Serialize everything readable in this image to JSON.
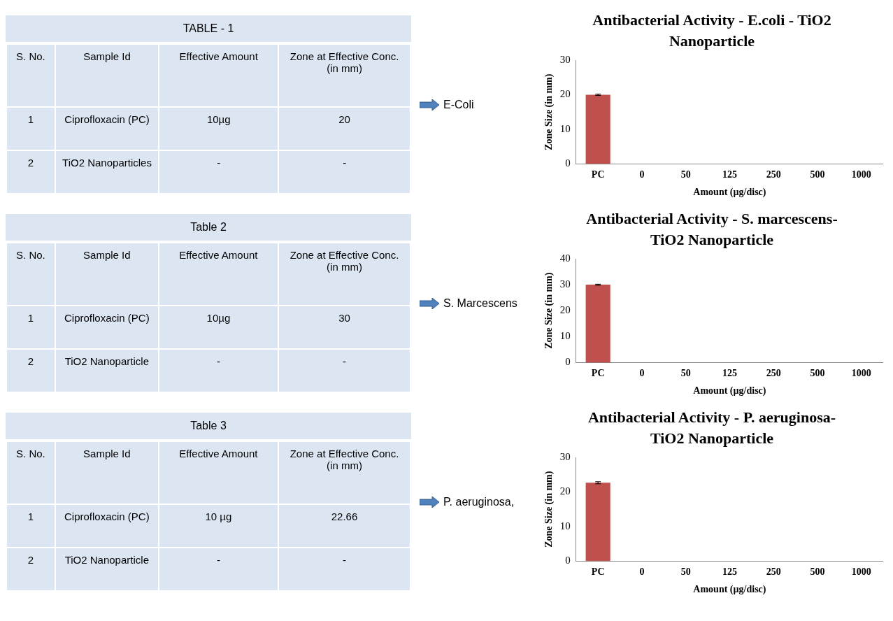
{
  "chart_data": [
    {
      "type": "other",
      "title": "TABLE - 1",
      "annotations": [
        "S. No.",
        "Sample Id",
        "Effective Amount",
        "Zone at Effective Conc. (in mm)",
        "1",
        "Ciprofloxacin (PC)",
        "10µg",
        "20",
        "2",
        "TiO2 Nanoparticles",
        "-",
        "-",
        "E-Coli"
      ]
    },
    {
      "type": "bar",
      "title": "Antibacterial Activity - E.coli - TiO2 Nanoparticle",
      "xlabel": "Amount (µg/disc)",
      "ylabel": "Zone Size (in mm)",
      "categories": [
        "PC",
        "0",
        "50",
        "125",
        "250",
        "500",
        "1000"
      ],
      "values": [
        20,
        0,
        0,
        0,
        0,
        0,
        0
      ],
      "errors": [
        0.2,
        null,
        null,
        null,
        null,
        null,
        null
      ],
      "color": "#c0504d",
      "ylim": [
        0,
        30
      ],
      "yticks": [
        0,
        10,
        20,
        30
      ],
      "grid": false,
      "legend": false
    },
    {
      "type": "other",
      "title": "Table 2",
      "annotations": [
        "S. No.",
        "Sample Id",
        "Effective Amount",
        "Zone at Effective Conc. (in mm)",
        "1",
        "Ciprofloxacin (PC)",
        "10µg",
        "30",
        "2",
        "TiO2 Nanoparticle",
        "-",
        "-",
        "S. Marcescens"
      ]
    },
    {
      "type": "bar",
      "title": "Antibacterial Activity - S. marcescens- TiO2 Nanoparticle",
      "xlabel": "Amount (µg/disc)",
      "ylabel": "Zone Size (in mm)",
      "categories": [
        "PC",
        "0",
        "50",
        "125",
        "250",
        "500",
        "1000"
      ],
      "values": [
        30,
        0,
        0,
        0,
        0,
        0,
        0
      ],
      "errors": [
        0.2,
        null,
        null,
        null,
        null,
        null,
        null
      ],
      "color": "#c0504d",
      "ylim": [
        0,
        40
      ],
      "yticks": [
        0,
        10,
        20,
        30,
        40
      ],
      "grid": false,
      "legend": false
    },
    {
      "type": "other",
      "title": "Table 3",
      "annotations": [
        "S. No.",
        "Sample Id",
        "Effective Amount",
        "Zone at Effective Conc. (in mm)",
        "1",
        "Ciprofloxacin (PC)",
        "10 µg",
        "22.66",
        "2",
        "TiO2 Nanoparticle",
        "-",
        "-",
        "P. aeruginosa,"
      ]
    },
    {
      "type": "bar",
      "title": "Antibacterial Activity - P. aeruginosa- TiO2 Nanoparticle",
      "xlabel": "Amount (µg/disc)",
      "ylabel": "Zone Size (in mm)",
      "categories": [
        "PC",
        "0",
        "50",
        "125",
        "250",
        "500",
        "1000"
      ],
      "values": [
        22.66,
        0,
        0,
        0,
        0,
        0,
        0
      ],
      "errors": [
        0.3,
        null,
        null,
        null,
        null,
        null,
        null
      ],
      "color": "#c0504d",
      "ylim": [
        0,
        30
      ],
      "yticks": [
        0,
        10,
        20,
        30
      ],
      "grid": false,
      "legend": false
    }
  ]
}
